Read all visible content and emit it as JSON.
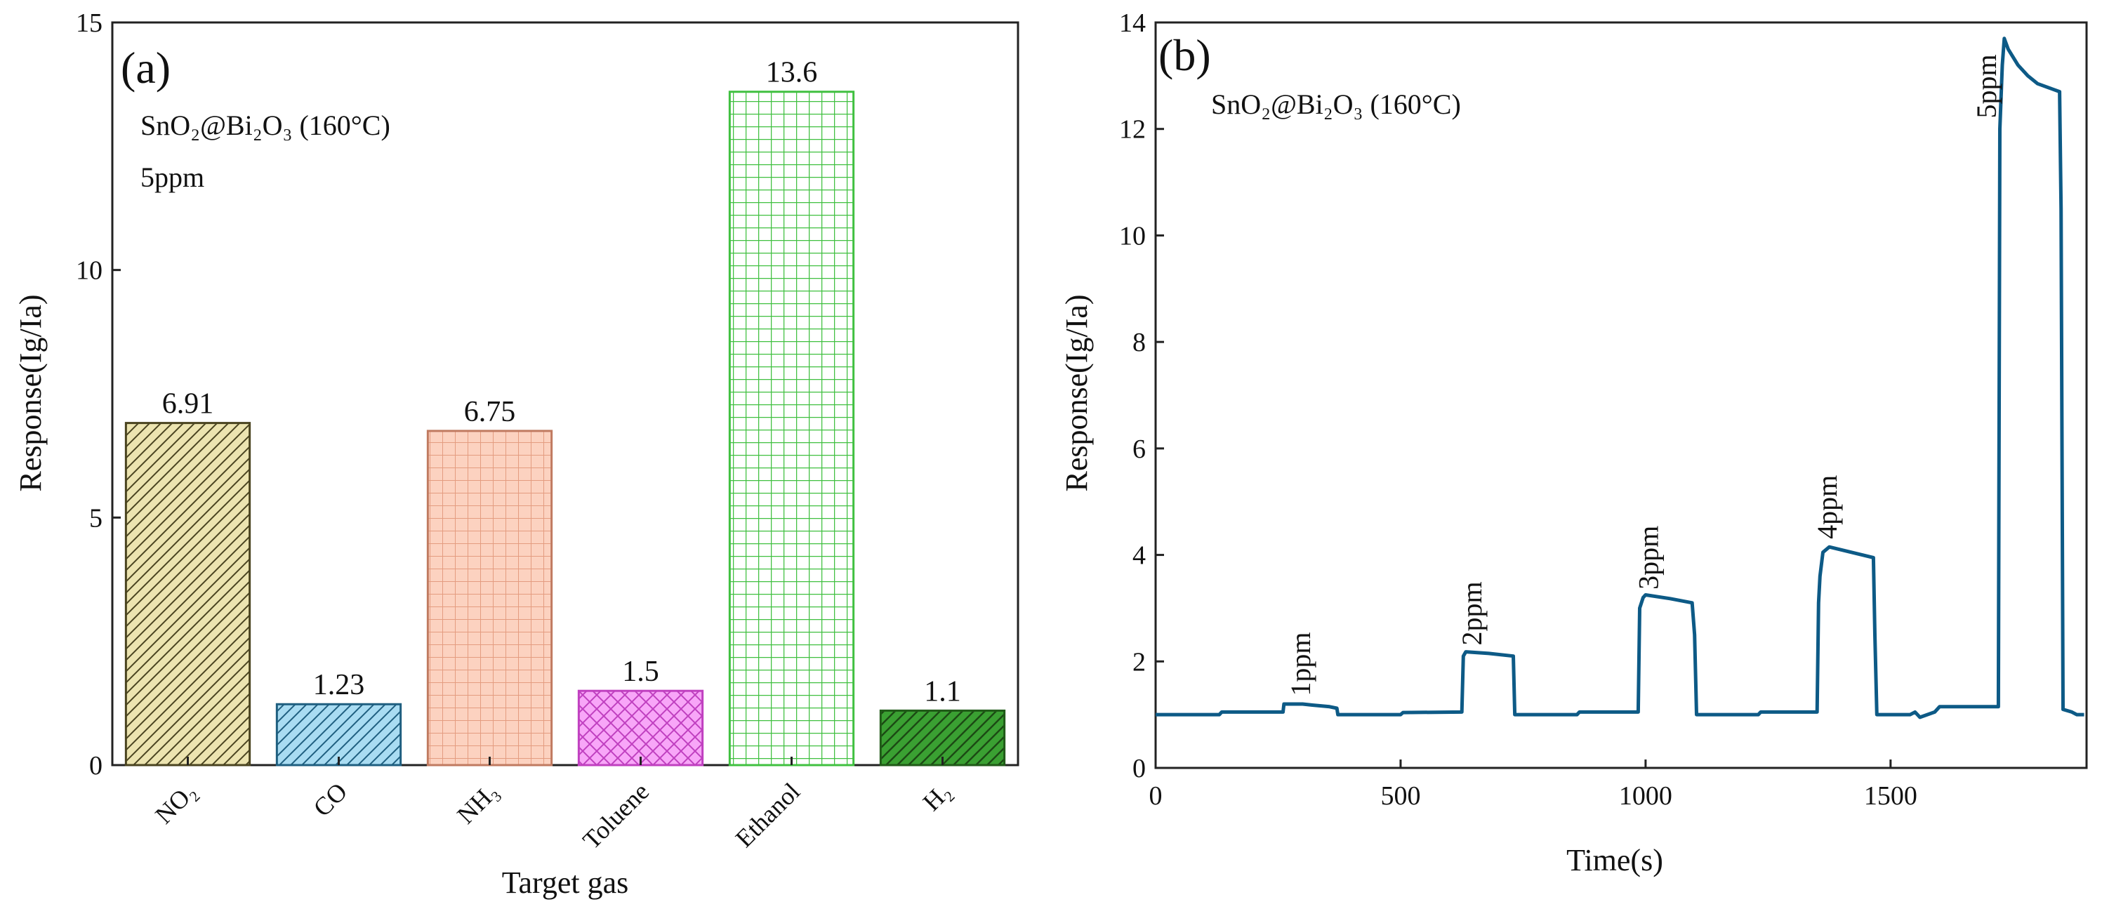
{
  "chart_data": [
    {
      "type": "bar",
      "panel": "(a)",
      "annotations": [
        "SnO₂@Bi₂O₃ (160°C)",
        "5ppm"
      ],
      "categories": [
        "NO₂",
        "CO",
        "NH₃",
        "Toluene",
        "Ethanol",
        "H₂"
      ],
      "values": [
        6.91,
        1.23,
        6.75,
        1.5,
        13.6,
        1.1
      ],
      "value_labels": [
        "6.91",
        "1.23",
        "6.75",
        "1.5",
        "13.6",
        "1.1"
      ],
      "colors": [
        "#ece4b0",
        "#a9dcf2",
        "#fcd2c0",
        "#f8a6f8",
        "#a8f6a8",
        "#3aa032"
      ],
      "edge_colors": [
        "#4a4420",
        "#1f5f80",
        "#c07a60",
        "#c040c0",
        "#40c040",
        "#205a18"
      ],
      "patterns": [
        "diag-right",
        "diag-right",
        "grid",
        "crosshatch",
        "grid",
        "diag-right"
      ],
      "xlabel": "Target gas",
      "ylabel": "Response(Ig/Ia)",
      "ylim": [
        0,
        15
      ],
      "yticks": [
        0,
        5,
        10,
        15
      ]
    },
    {
      "type": "line",
      "panel": "(b)",
      "annotations": [
        "SnO₂@Bi₂O₃ (160°C)"
      ],
      "series": [
        {
          "name": "response",
          "color": "#0d5a86",
          "points": [
            [
              0,
              1.0
            ],
            [
              130,
              1.0
            ],
            [
              135,
              1.05
            ],
            [
              260,
              1.05
            ],
            [
              262,
              1.2
            ],
            [
              300,
              1.2
            ],
            [
              320,
              1.18
            ],
            [
              355,
              1.15
            ],
            [
              370,
              1.12
            ],
            [
              372,
              1.0
            ],
            [
              500,
              1.0
            ],
            [
              505,
              1.04
            ],
            [
              625,
              1.05
            ],
            [
              628,
              2.1
            ],
            [
              633,
              2.18
            ],
            [
              680,
              2.15
            ],
            [
              730,
              2.1
            ],
            [
              733,
              1.0
            ],
            [
              860,
              1.0
            ],
            [
              865,
              1.05
            ],
            [
              985,
              1.05
            ],
            [
              988,
              3.0
            ],
            [
              995,
              3.2
            ],
            [
              1000,
              3.25
            ],
            [
              1050,
              3.18
            ],
            [
              1095,
              3.1
            ],
            [
              1100,
              2.5
            ],
            [
              1104,
              1.0
            ],
            [
              1230,
              1.0
            ],
            [
              1235,
              1.05
            ],
            [
              1350,
              1.05
            ],
            [
              1353,
              3.1
            ],
            [
              1356,
              3.6
            ],
            [
              1362,
              4.05
            ],
            [
              1375,
              4.15
            ],
            [
              1420,
              4.05
            ],
            [
              1465,
              3.95
            ],
            [
              1468,
              2.5
            ],
            [
              1472,
              1.0
            ],
            [
              1540,
              1.0
            ],
            [
              1550,
              1.05
            ],
            [
              1560,
              0.95
            ],
            [
              1575,
              1.0
            ],
            [
              1590,
              1.05
            ],
            [
              1600,
              1.15
            ],
            [
              1720,
              1.15
            ],
            [
              1723,
              12.0
            ],
            [
              1728,
              13.2
            ],
            [
              1732,
              13.7
            ],
            [
              1740,
              13.5
            ],
            [
              1760,
              13.2
            ],
            [
              1780,
              13.0
            ],
            [
              1800,
              12.85
            ],
            [
              1830,
              12.75
            ],
            [
              1845,
              12.7
            ],
            [
              1848,
              10.5
            ],
            [
              1852,
              1.1
            ],
            [
              1870,
              1.05
            ],
            [
              1880,
              1.0
            ],
            [
              1895,
              1.0
            ]
          ]
        }
      ],
      "step_labels": [
        {
          "text": "1ppm",
          "x": 315,
          "y": 1.35
        },
        {
          "text": "2ppm",
          "x": 665,
          "y": 2.3
        },
        {
          "text": "3ppm",
          "x": 1025,
          "y": 3.35
        },
        {
          "text": "4ppm",
          "x": 1390,
          "y": 4.3
        },
        {
          "text": "5ppm",
          "x": 1715,
          "y": 12.2
        }
      ],
      "xlabel": "Time(s)",
      "ylabel": "Response(Ig/Ia)",
      "xlim": [
        0,
        1900
      ],
      "ylim": [
        0,
        14
      ],
      "xticks": [
        0,
        500,
        1000,
        1500
      ],
      "yticks": [
        0,
        2,
        4,
        6,
        8,
        10,
        12,
        14
      ]
    }
  ]
}
